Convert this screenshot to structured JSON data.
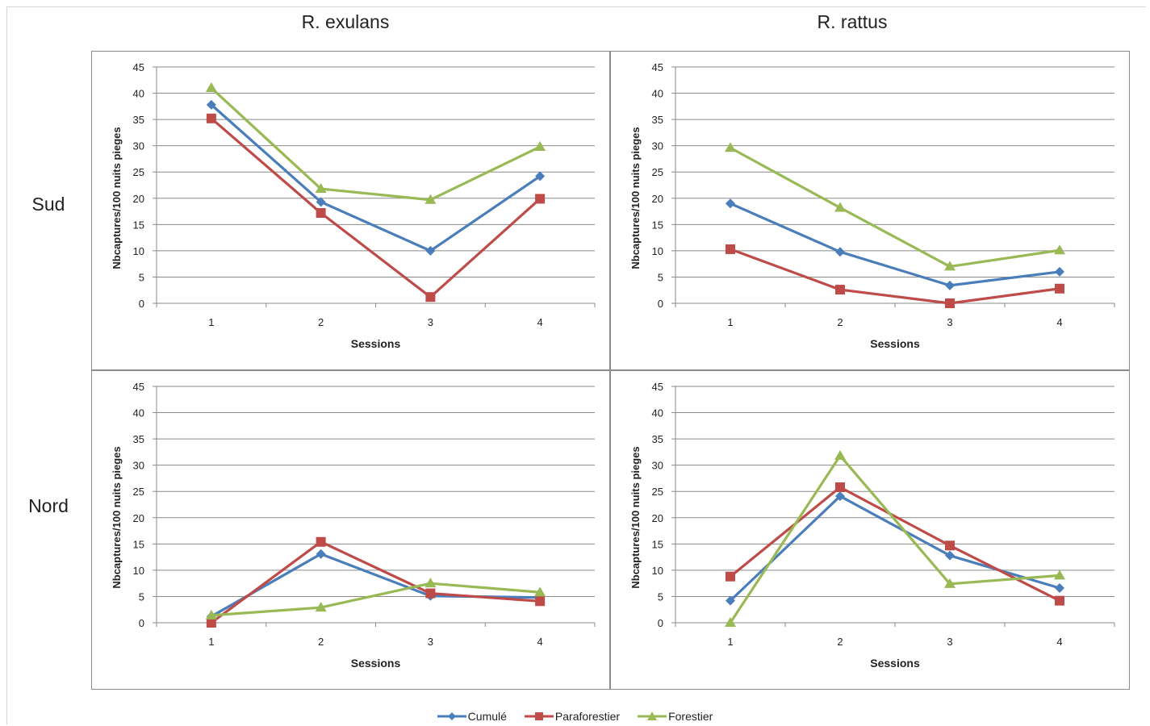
{
  "columns": [
    "R. exulans",
    "R. rattus"
  ],
  "rows": [
    "Sud",
    "Nord"
  ],
  "legend": [
    {
      "name": "Cumulé",
      "color": "#4a7ebb",
      "marker": "diamond"
    },
    {
      "name": "Paraforestier",
      "color": "#be4b48",
      "marker": "square"
    },
    {
      "name": "Forestier",
      "color": "#98b954",
      "marker": "triangle"
    }
  ],
  "chart_data": [
    {
      "type": "line",
      "title": "",
      "panel": "R. exulans — Sud",
      "xlabel": "Sessions",
      "ylabel": "Nbcaptures/100 nuits pieges",
      "categories": [
        "1",
        "2",
        "3",
        "4"
      ],
      "ylim": [
        0,
        45
      ],
      "yticks": [
        0,
        5,
        10,
        15,
        20,
        25,
        30,
        35,
        40,
        45
      ],
      "series": [
        {
          "name": "Cumulé",
          "values": [
            37.8,
            19.3,
            10.0,
            24.2
          ]
        },
        {
          "name": "Paraforestier",
          "values": [
            35.2,
            17.2,
            1.2,
            19.9
          ]
        },
        {
          "name": "Forestier",
          "values": [
            41.0,
            21.8,
            19.7,
            29.8
          ]
        }
      ]
    },
    {
      "type": "line",
      "title": "",
      "panel": "R. rattus — Sud",
      "xlabel": "Sessions",
      "ylabel": "Nbcaptures/100 nuits pieges",
      "categories": [
        "1",
        "2",
        "3",
        "4"
      ],
      "ylim": [
        0,
        45
      ],
      "yticks": [
        0,
        5,
        10,
        15,
        20,
        25,
        30,
        35,
        40,
        45
      ],
      "series": [
        {
          "name": "Cumulé",
          "values": [
            19.0,
            9.8,
            3.4,
            6.0
          ]
        },
        {
          "name": "Paraforestier",
          "values": [
            10.3,
            2.6,
            0.0,
            2.8
          ]
        },
        {
          "name": "Forestier",
          "values": [
            29.6,
            18.2,
            7.0,
            10.1
          ]
        }
      ]
    },
    {
      "type": "line",
      "title": "",
      "panel": "R. exulans — Nord",
      "xlabel": "Sessions",
      "ylabel": "Nbcaptures/100 nuits pieges",
      "categories": [
        "1",
        "2",
        "3",
        "4"
      ],
      "ylim": [
        0,
        45
      ],
      "yticks": [
        0,
        5,
        10,
        15,
        20,
        25,
        30,
        35,
        40,
        45
      ],
      "series": [
        {
          "name": "Cumulé",
          "values": [
            1.2,
            13.1,
            5.1,
            4.8
          ]
        },
        {
          "name": "Paraforestier",
          "values": [
            0.0,
            15.4,
            5.6,
            4.1
          ]
        },
        {
          "name": "Forestier",
          "values": [
            1.4,
            2.9,
            7.5,
            5.8
          ]
        }
      ]
    },
    {
      "type": "line",
      "title": "",
      "panel": "R. rattus — Nord",
      "xlabel": "Sessions",
      "ylabel": "Nbcaptures/100 nuits pieges",
      "categories": [
        "1",
        "2",
        "3",
        "4"
      ],
      "ylim": [
        0,
        45
      ],
      "yticks": [
        0,
        5,
        10,
        15,
        20,
        25,
        30,
        35,
        40,
        45
      ],
      "series": [
        {
          "name": "Cumulé",
          "values": [
            4.2,
            24.1,
            12.8,
            6.6
          ]
        },
        {
          "name": "Paraforestier",
          "values": [
            8.8,
            25.8,
            14.7,
            4.2
          ]
        },
        {
          "name": "Forestier",
          "values": [
            0.0,
            31.8,
            7.4,
            9.0
          ]
        }
      ]
    }
  ]
}
